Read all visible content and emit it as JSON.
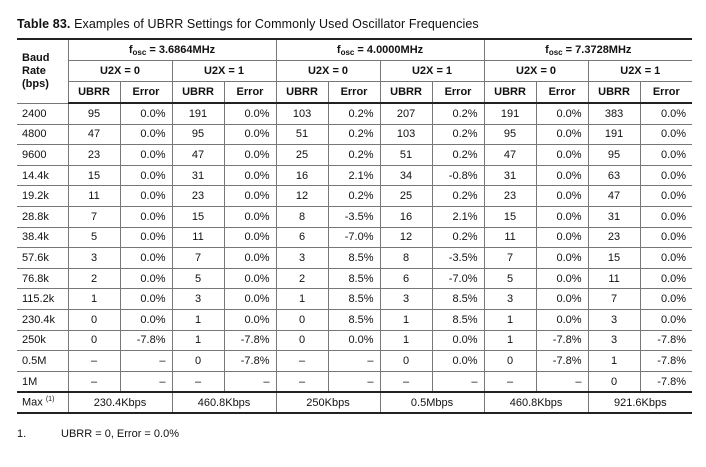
{
  "caption": {
    "label": "Table 83.",
    "text": "Examples of UBRR Settings for Commonly Used Oscillator Frequencies"
  },
  "header": {
    "baud_line1": "Baud",
    "baud_line2": "Rate",
    "baud_line3": "(bps)",
    "oscillators": [
      {
        "f": "f",
        "sub": "osc",
        "value": " = 3.6864MHz"
      },
      {
        "f": "f",
        "sub": "osc",
        "value": " = 4.0000MHz"
      },
      {
        "f": "f",
        "sub": "osc",
        "value": " = 7.3728MHz"
      }
    ],
    "u2x": [
      "U2X = 0",
      "U2X = 1",
      "U2X = 0",
      "U2X = 1",
      "U2X = 0",
      "U2X = 1"
    ],
    "sub_cols": [
      "UBRR",
      "Error",
      "UBRR",
      "Error",
      "UBRR",
      "Error",
      "UBRR",
      "Error",
      "UBRR",
      "Error",
      "UBRR",
      "Error"
    ]
  },
  "rows": [
    {
      "baud": "2400",
      "cells": [
        "95",
        "0.0%",
        "191",
        "0.0%",
        "103",
        "0.2%",
        "207",
        "0.2%",
        "191",
        "0.0%",
        "383",
        "0.0%"
      ]
    },
    {
      "baud": "4800",
      "cells": [
        "47",
        "0.0%",
        "95",
        "0.0%",
        "51",
        "0.2%",
        "103",
        "0.2%",
        "95",
        "0.0%",
        "191",
        "0.0%"
      ]
    },
    {
      "baud": "9600",
      "cells": [
        "23",
        "0.0%",
        "47",
        "0.0%",
        "25",
        "0.2%",
        "51",
        "0.2%",
        "47",
        "0.0%",
        "95",
        "0.0%"
      ]
    },
    {
      "baud": "14.4k",
      "cells": [
        "15",
        "0.0%",
        "31",
        "0.0%",
        "16",
        "2.1%",
        "34",
        "-0.8%",
        "31",
        "0.0%",
        "63",
        "0.0%"
      ]
    },
    {
      "baud": "19.2k",
      "cells": [
        "11",
        "0.0%",
        "23",
        "0.0%",
        "12",
        "0.2%",
        "25",
        "0.2%",
        "23",
        "0.0%",
        "47",
        "0.0%"
      ]
    },
    {
      "baud": "28.8k",
      "cells": [
        "7",
        "0.0%",
        "15",
        "0.0%",
        "8",
        "-3.5%",
        "16",
        "2.1%",
        "15",
        "0.0%",
        "31",
        "0.0%"
      ]
    },
    {
      "baud": "38.4k",
      "cells": [
        "5",
        "0.0%",
        "11",
        "0.0%",
        "6",
        "-7.0%",
        "12",
        "0.2%",
        "11",
        "0.0%",
        "23",
        "0.0%"
      ]
    },
    {
      "baud": "57.6k",
      "cells": [
        "3",
        "0.0%",
        "7",
        "0.0%",
        "3",
        "8.5%",
        "8",
        "-3.5%",
        "7",
        "0.0%",
        "15",
        "0.0%"
      ]
    },
    {
      "baud": "76.8k",
      "cells": [
        "2",
        "0.0%",
        "5",
        "0.0%",
        "2",
        "8.5%",
        "6",
        "-7.0%",
        "5",
        "0.0%",
        "11",
        "0.0%"
      ]
    },
    {
      "baud": "115.2k",
      "cells": [
        "1",
        "0.0%",
        "3",
        "0.0%",
        "1",
        "8.5%",
        "3",
        "8.5%",
        "3",
        "0.0%",
        "7",
        "0.0%"
      ]
    },
    {
      "baud": "230.4k",
      "cells": [
        "0",
        "0.0%",
        "1",
        "0.0%",
        "0",
        "8.5%",
        "1",
        "8.5%",
        "1",
        "0.0%",
        "3",
        "0.0%"
      ]
    },
    {
      "baud": "250k",
      "cells": [
        "0",
        "-7.8%",
        "1",
        "-7.8%",
        "0",
        "0.0%",
        "1",
        "0.0%",
        "1",
        "-7.8%",
        "3",
        "-7.8%"
      ]
    },
    {
      "baud": "0.5M",
      "cells": [
        "–",
        "–",
        "0",
        "-7.8%",
        "–",
        "–",
        "0",
        "0.0%",
        "0",
        "-7.8%",
        "1",
        "-7.8%"
      ]
    },
    {
      "baud": "1M",
      "cells": [
        "–",
        "–",
        "–",
        "–",
        "–",
        "–",
        "–",
        "–",
        "–",
        "–",
        "0",
        "-7.8%"
      ]
    }
  ],
  "max_row": {
    "label": "Max",
    "footnote_ref": "(1)",
    "values": [
      "230.4Kbps",
      "460.8Kbps",
      "250Kbps",
      "0.5Mbps",
      "460.8Kbps",
      "921.6Kbps"
    ]
  },
  "footnote": {
    "number": "1.",
    "text": "UBRR = 0, Error = 0.0%"
  }
}
